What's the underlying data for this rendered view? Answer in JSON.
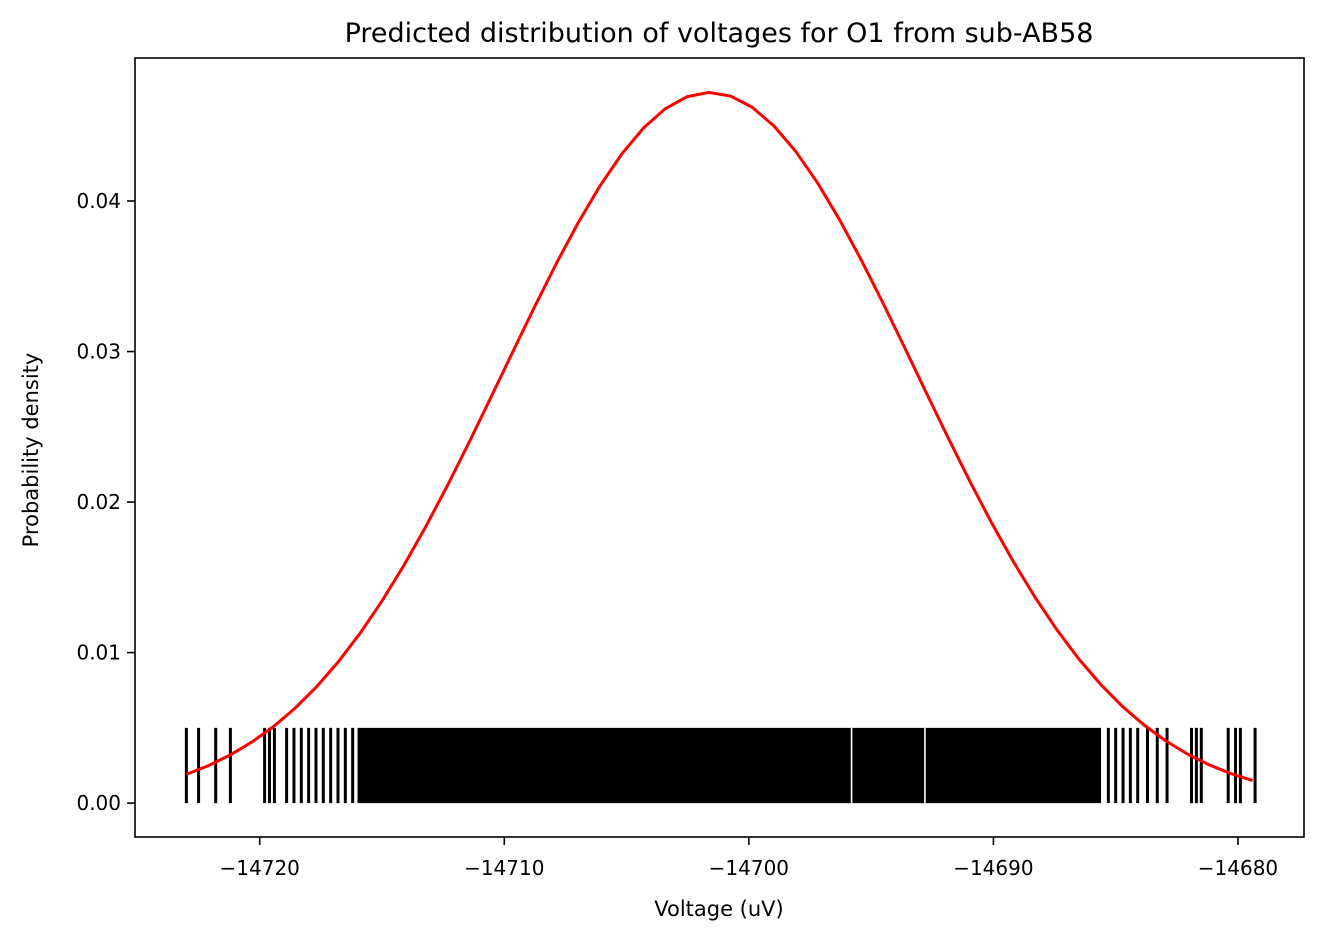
{
  "chart_data": {
    "type": "line",
    "title": "Predicted distribution of voltages for O1 from sub-AB58",
    "xlabel": "Voltage (uV)",
    "ylabel": "Probability density",
    "xlim": [
      -14725.1,
      -14677.3
    ],
    "ylim": [
      -0.00225,
      0.0495
    ],
    "x_ticks": [
      -14720,
      -14710,
      -14700,
      -14690,
      -14680
    ],
    "x_tick_labels": [
      "−14720",
      "−14710",
      "−14700",
      "−14690",
      "−14680"
    ],
    "y_ticks": [
      0.0,
      0.01,
      0.02,
      0.03,
      0.04
    ],
    "y_tick_labels": [
      "0.00",
      "0.01",
      "0.02",
      "0.03",
      "0.04"
    ],
    "grid": false,
    "series": [
      {
        "type": "line",
        "color": "#ff0000",
        "normal_fit": {
          "mean": -14701.6,
          "std": 8.45
        },
        "x_range": [
          -14723.0,
          -14679.4
        ]
      },
      {
        "type": "rug",
        "color": "#000000",
        "y_range": [
          0.0,
          0.005
        ],
        "sample_ticks": [
          -14723.0,
          -14722.5,
          -14721.8,
          -14721.2,
          -14719.8,
          -14719.6,
          -14719.4,
          -14718.9,
          -14718.6,
          -14718.3,
          -14718.0,
          -14717.7,
          -14717.4,
          -14717.1,
          -14716.8,
          -14716.5,
          -14716.2
        ],
        "dense_band": [
          -14716.0,
          -14685.6
        ],
        "band_gaps": [
          -14695.8,
          -14692.8
        ],
        "extra_ticks": [
          -14685.3,
          -14685.0,
          -14684.7,
          -14684.4,
          -14684.1,
          -14683.7,
          -14683.3,
          -14682.9,
          -14681.9,
          -14681.7,
          -14681.5,
          -14680.4,
          -14680.1,
          -14679.9,
          -14679.3
        ]
      }
    ]
  }
}
